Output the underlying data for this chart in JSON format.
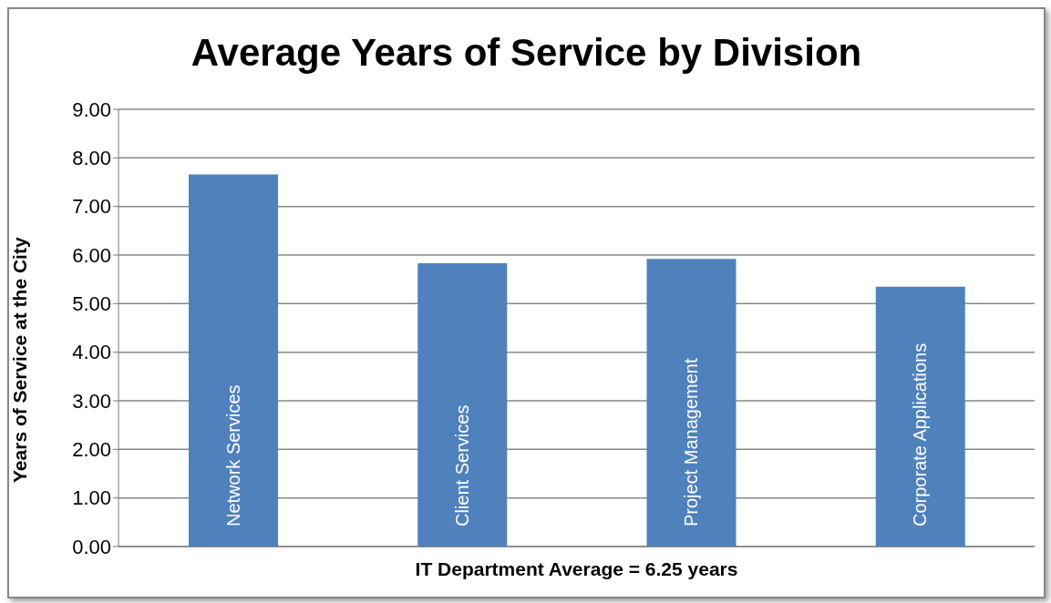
{
  "chart_data": {
    "type": "bar",
    "title": "Average Years of Service by Division",
    "xlabel": "IT Department Average = 6.25 years",
    "ylabel": "Years of Service at the City",
    "categories": [
      "Network Services",
      "Client Services",
      "Project Management",
      "Corporate Applications"
    ],
    "values": [
      7.66,
      5.83,
      5.92,
      5.35
    ],
    "color": "#4f81bd",
    "ylim": [
      0,
      9
    ],
    "yticks": [
      {
        "value": 0,
        "label": "0.00"
      },
      {
        "value": 1,
        "label": "1.00"
      },
      {
        "value": 2,
        "label": "2.00"
      },
      {
        "value": 3,
        "label": "3.00"
      },
      {
        "value": 4,
        "label": "4.00"
      },
      {
        "value": 5,
        "label": "5.00"
      },
      {
        "value": 6,
        "label": "6.00"
      },
      {
        "value": 7,
        "label": "7.00"
      },
      {
        "value": 8,
        "label": "8.00"
      },
      {
        "value": 9,
        "label": "9.00"
      }
    ],
    "grid": "y"
  }
}
